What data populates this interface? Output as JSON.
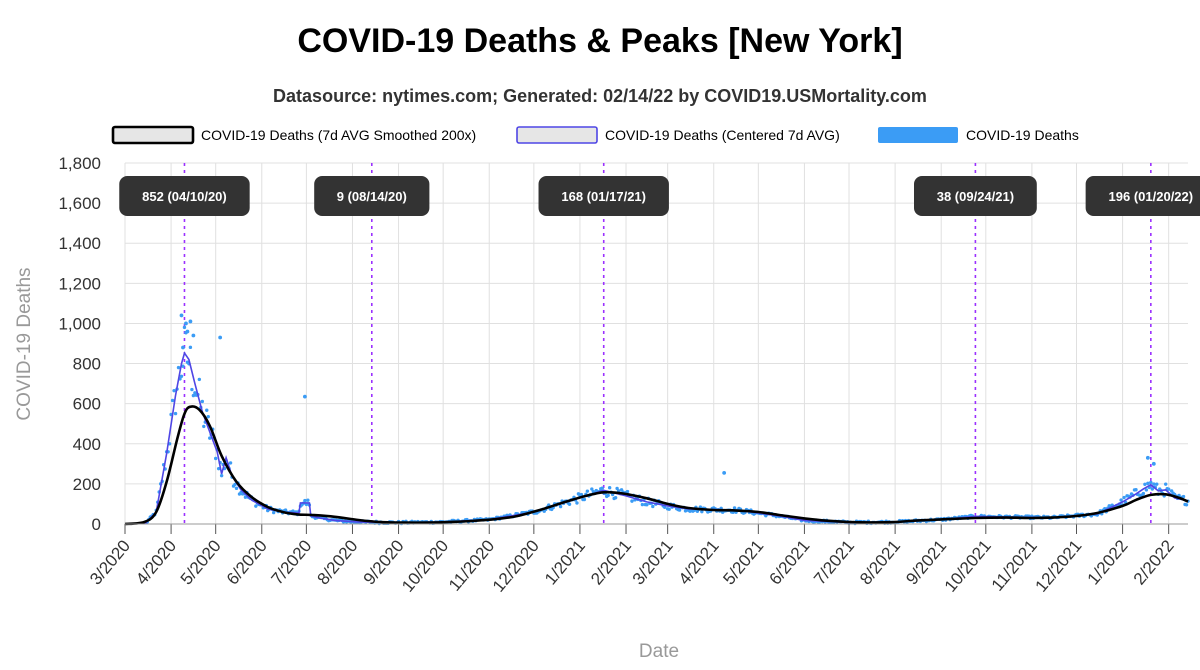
{
  "title": "COVID-19 Deaths & Peaks [New York]",
  "subtitle": "Datasource: nytimes.com; Generated: 02/14/22 by COVID19.USMortality.com",
  "colors": {
    "smoothed": "#000000",
    "centered": "#4f46e5",
    "deaths": "#3b9cf5",
    "peak_line": "#9b30ff",
    "peak_box": "#333333",
    "grid": "#e0e0e0"
  },
  "chart_data": {
    "type": "line",
    "xlabel": "Date",
    "ylabel": "COVID-19 Deaths",
    "ylim": [
      0,
      1800
    ],
    "yticks": [
      0,
      200,
      400,
      600,
      800,
      1000,
      1200,
      1400,
      1600,
      1800
    ],
    "ytick_labels": [
      "0",
      "200",
      "400",
      "600",
      "800",
      "1,000",
      "1,200",
      "1,400",
      "1,600",
      "1,800"
    ],
    "x_tick_labels": [
      "3/2020",
      "4/2020",
      "5/2020",
      "6/2020",
      "7/2020",
      "8/2020",
      "9/2020",
      "10/2020",
      "11/2020",
      "12/2020",
      "1/2021",
      "2/2021",
      "3/2021",
      "4/2021",
      "5/2021",
      "6/2021",
      "7/2021",
      "8/2021",
      "9/2021",
      "10/2021",
      "11/2021",
      "12/2021",
      "1/2022",
      "2/2022"
    ],
    "x_range": [
      "2020-03-01",
      "2022-02-14"
    ],
    "grid": true,
    "legend": {
      "placement": "top",
      "entries": [
        {
          "label": "COVID-19 Deaths (7d AVG Smoothed 200x)",
          "series": "smoothed"
        },
        {
          "label": "COVID-19 Deaths (Centered 7d AVG)",
          "series": "centered"
        },
        {
          "label": "COVID-19 Deaths",
          "series": "deaths"
        }
      ]
    },
    "series": [
      {
        "name": "COVID-19 Deaths (7d AVG Smoothed 200x)",
        "key": "smoothed",
        "x": [
          "2020-03-01",
          "2020-03-14",
          "2020-03-22",
          "2020-03-29",
          "2020-04-05",
          "2020-04-10",
          "2020-04-14",
          "2020-04-20",
          "2020-04-27",
          "2020-05-05",
          "2020-05-15",
          "2020-05-25",
          "2020-06-05",
          "2020-06-15",
          "2020-06-25",
          "2020-07-05",
          "2020-07-20",
          "2020-08-05",
          "2020-08-20",
          "2020-09-05",
          "2020-09-20",
          "2020-10-05",
          "2020-10-20",
          "2020-11-05",
          "2020-11-20",
          "2020-12-05",
          "2020-12-20",
          "2021-01-05",
          "2021-01-17",
          "2021-01-30",
          "2021-02-15",
          "2021-03-01",
          "2021-03-15",
          "2021-04-01",
          "2021-04-15",
          "2021-05-01",
          "2021-05-15",
          "2021-06-01",
          "2021-06-15",
          "2021-07-01",
          "2021-07-15",
          "2021-08-01",
          "2021-08-15",
          "2021-09-01",
          "2021-09-24",
          "2021-10-15",
          "2021-11-01",
          "2021-11-15",
          "2021-12-01",
          "2021-12-15",
          "2022-01-01",
          "2022-01-10",
          "2022-01-20",
          "2022-01-30",
          "2022-02-08",
          "2022-02-14"
        ],
        "values": [
          0,
          10,
          60,
          210,
          420,
          550,
          585,
          570,
          490,
          340,
          210,
          135,
          85,
          60,
          48,
          45,
          36,
          20,
          10,
          7,
          7,
          10,
          15,
          24,
          40,
          70,
          105,
          140,
          158,
          152,
          128,
          100,
          80,
          70,
          68,
          60,
          45,
          28,
          17,
          10,
          8,
          10,
          17,
          23,
          30,
          32,
          30,
          32,
          40,
          55,
          90,
          120,
          145,
          148,
          130,
          112
        ]
      },
      {
        "name": "COVID-19 Deaths (Centered 7d AVG)",
        "key": "centered",
        "x": [
          "2020-03-01",
          "2020-03-15",
          "2020-03-22",
          "2020-03-29",
          "2020-04-04",
          "2020-04-08",
          "2020-04-10",
          "2020-04-13",
          "2020-04-17",
          "2020-04-22",
          "2020-04-28",
          "2020-05-02",
          "2020-05-05",
          "2020-05-08",
          "2020-05-12",
          "2020-05-18",
          "2020-05-25",
          "2020-06-05",
          "2020-06-15",
          "2020-06-26",
          "2020-06-27",
          "2020-07-03",
          "2020-07-04",
          "2020-07-10",
          "2020-07-20",
          "2020-08-05",
          "2020-08-14",
          "2020-09-01",
          "2020-10-01",
          "2020-11-01",
          "2020-12-01",
          "2021-01-01",
          "2021-01-17",
          "2021-02-01",
          "2021-02-15",
          "2021-03-01",
          "2021-03-15",
          "2021-04-01",
          "2021-04-15",
          "2021-05-01",
          "2021-05-15",
          "2021-06-01",
          "2021-07-01",
          "2021-08-01",
          "2021-09-01",
          "2021-09-24",
          "2021-10-15",
          "2021-11-15",
          "2021-12-15",
          "2022-01-01",
          "2022-01-10",
          "2022-01-15",
          "2022-01-20",
          "2022-01-25",
          "2022-01-30",
          "2022-02-05",
          "2022-02-14"
        ],
        "values": [
          0,
          5,
          60,
          350,
          640,
          800,
          852,
          820,
          700,
          560,
          440,
          360,
          250,
          330,
          240,
          170,
          120,
          75,
          60,
          55,
          105,
          105,
          40,
          30,
          18,
          10,
          9,
          7,
          10,
          22,
          60,
          130,
          168,
          140,
          110,
          90,
          75,
          72,
          70,
          55,
          40,
          18,
          8,
          10,
          22,
          38,
          35,
          32,
          50,
          110,
          150,
          175,
          196,
          165,
          170,
          130,
          115
        ]
      },
      {
        "name": "COVID-19 Deaths",
        "key": "deaths",
        "style": "points",
        "note": "daily values; individual points generated around the 7-day average",
        "outliers": [
          {
            "x": "2020-04-08",
            "y": 1040
          },
          {
            "x": "2020-04-11",
            "y": 1000
          },
          {
            "x": "2020-04-12",
            "y": 960
          },
          {
            "x": "2020-04-14",
            "y": 1010
          },
          {
            "x": "2020-04-16",
            "y": 940
          },
          {
            "x": "2020-04-09",
            "y": 880
          },
          {
            "x": "2020-05-04",
            "y": 930
          },
          {
            "x": "2020-06-30",
            "y": 635
          },
          {
            "x": "2021-04-08",
            "y": 255
          },
          {
            "x": "2022-01-18",
            "y": 330
          },
          {
            "x": "2022-01-22",
            "y": 300
          }
        ]
      }
    ],
    "peaks": [
      {
        "label": "852 (04/10/20)",
        "x": "2020-04-10",
        "value": 852
      },
      {
        "label": "9 (08/14/20)",
        "x": "2020-08-14",
        "value": 9
      },
      {
        "label": "168 (01/17/21)",
        "x": "2021-01-17",
        "value": 168
      },
      {
        "label": "38 (09/24/21)",
        "x": "2021-09-24",
        "value": 38
      },
      {
        "label": "196 (01/20/22)",
        "x": "2022-01-20",
        "value": 196
      }
    ]
  }
}
